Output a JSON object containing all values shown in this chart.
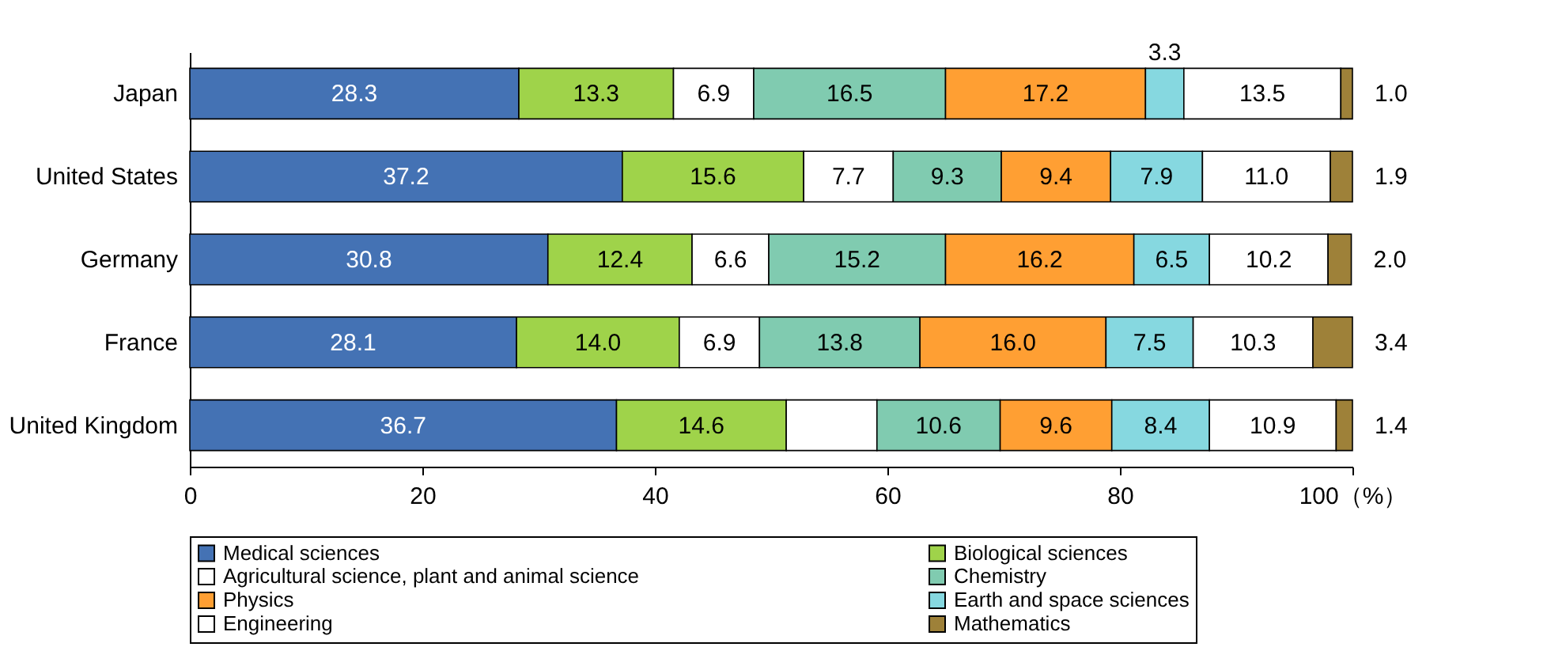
{
  "chart_data": {
    "type": "bar",
    "orientation": "horizontal",
    "stacked": true,
    "categories": [
      "Japan",
      "United States",
      "Germany",
      "France",
      "United Kingdom"
    ],
    "xlim": [
      0,
      100
    ],
    "xticks": [
      0,
      20,
      40,
      60,
      80,
      {
        "value": 100,
        "label": "100（%）"
      }
    ],
    "grid": false,
    "legend": "bottom",
    "series": [
      {
        "name": "Medical sciences",
        "color": "#4472b4",
        "values": [
          28.3,
          37.2,
          30.8,
          28.1,
          36.7
        ],
        "value_labels": [
          "28.3",
          "37.2",
          "30.8",
          "28.1",
          "36.7"
        ]
      },
      {
        "name": "Biological sciences",
        "color": "#9fd34a",
        "values": [
          13.3,
          15.6,
          12.4,
          14.0,
          14.6
        ],
        "value_labels": [
          "13.3",
          "15.6",
          "12.4",
          "14.0",
          "14.6"
        ]
      },
      {
        "name": "Agricultural science, plant and animal science",
        "color": "#ffffff",
        "values": [
          6.9,
          7.7,
          6.6,
          6.9,
          7.8
        ],
        "value_labels": [
          "6.9",
          "7.7",
          "6.6",
          "6.9",
          null
        ]
      },
      {
        "name": "Chemistry",
        "color": "#80cbb0",
        "values": [
          16.5,
          9.3,
          15.2,
          13.8,
          10.6
        ],
        "value_labels": [
          "16.5",
          "9.3",
          "15.2",
          "13.8",
          "10.6"
        ]
      },
      {
        "name": "Physics",
        "color": "#ff9f33",
        "values": [
          17.2,
          9.4,
          16.2,
          16.0,
          9.6
        ],
        "value_labels": [
          "17.2",
          "9.4",
          "16.2",
          "16.0",
          "9.6"
        ]
      },
      {
        "name": "Earth and space sciences",
        "color": "#86d8e0",
        "values": [
          3.3,
          7.9,
          6.5,
          7.5,
          8.4
        ],
        "value_labels": [
          "3.3",
          "7.9",
          "6.5",
          "7.5",
          "8.4"
        ]
      },
      {
        "name": "Engineering",
        "color": "#ffffff",
        "values": [
          13.5,
          11.0,
          10.2,
          10.3,
          10.9
        ],
        "value_labels": [
          "13.5",
          "11.0",
          "10.2",
          "10.3",
          "10.9"
        ]
      },
      {
        "name": "Mathematics",
        "color": "#9e8139",
        "values": [
          1.0,
          1.9,
          2.0,
          3.4,
          1.4
        ],
        "value_labels": [
          "1.0",
          "1.9",
          "2.0",
          "3.4",
          "1.4"
        ]
      }
    ]
  }
}
